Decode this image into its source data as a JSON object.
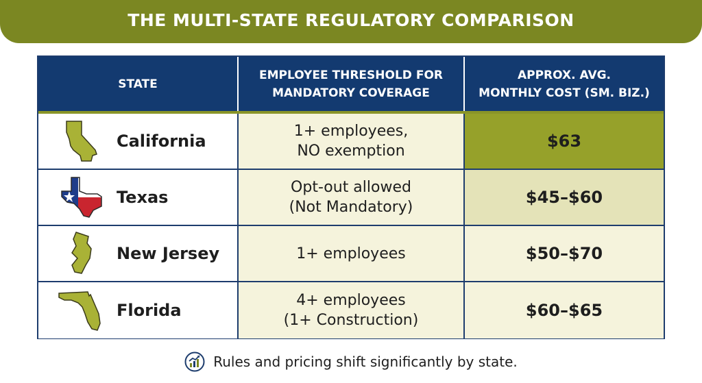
{
  "banner": {
    "title": "THE MULTI-STATE REGULATORY COMPARISON"
  },
  "table": {
    "headers": [
      "STATE",
      [
        "EMPLOYEE THRESHOLD FOR",
        "MANDATORY COVERAGE"
      ],
      [
        "APPROX. AVG.",
        "MONTHLY COST (SM. BIZ.)"
      ]
    ],
    "rows": [
      {
        "state": "California",
        "icon": "california-map-icon",
        "threshold": [
          "1+ employees,",
          "NO exemption"
        ],
        "cost": "$63"
      },
      {
        "state": "Texas",
        "icon": "texas-flag-map-icon",
        "threshold": [
          "Opt-out allowed",
          "(Not Mandatory)"
        ],
        "cost": "$45–$60"
      },
      {
        "state": "New Jersey",
        "icon": "new-jersey-map-icon",
        "threshold": [
          "1+ employees"
        ],
        "cost": "$50–$70"
      },
      {
        "state": "Florida",
        "icon": "florida-map-icon",
        "threshold": [
          "4+ employees",
          "(1+ Construction)"
        ],
        "cost": "$60–$65"
      }
    ]
  },
  "colors": {
    "banner": "#7b8722",
    "header": "#133a70",
    "highlight": "#96a12a",
    "state_fill": "#a9b236"
  },
  "footer": {
    "icon": "chart-growth-icon",
    "text": "Rules and pricing shift significantly by state."
  }
}
